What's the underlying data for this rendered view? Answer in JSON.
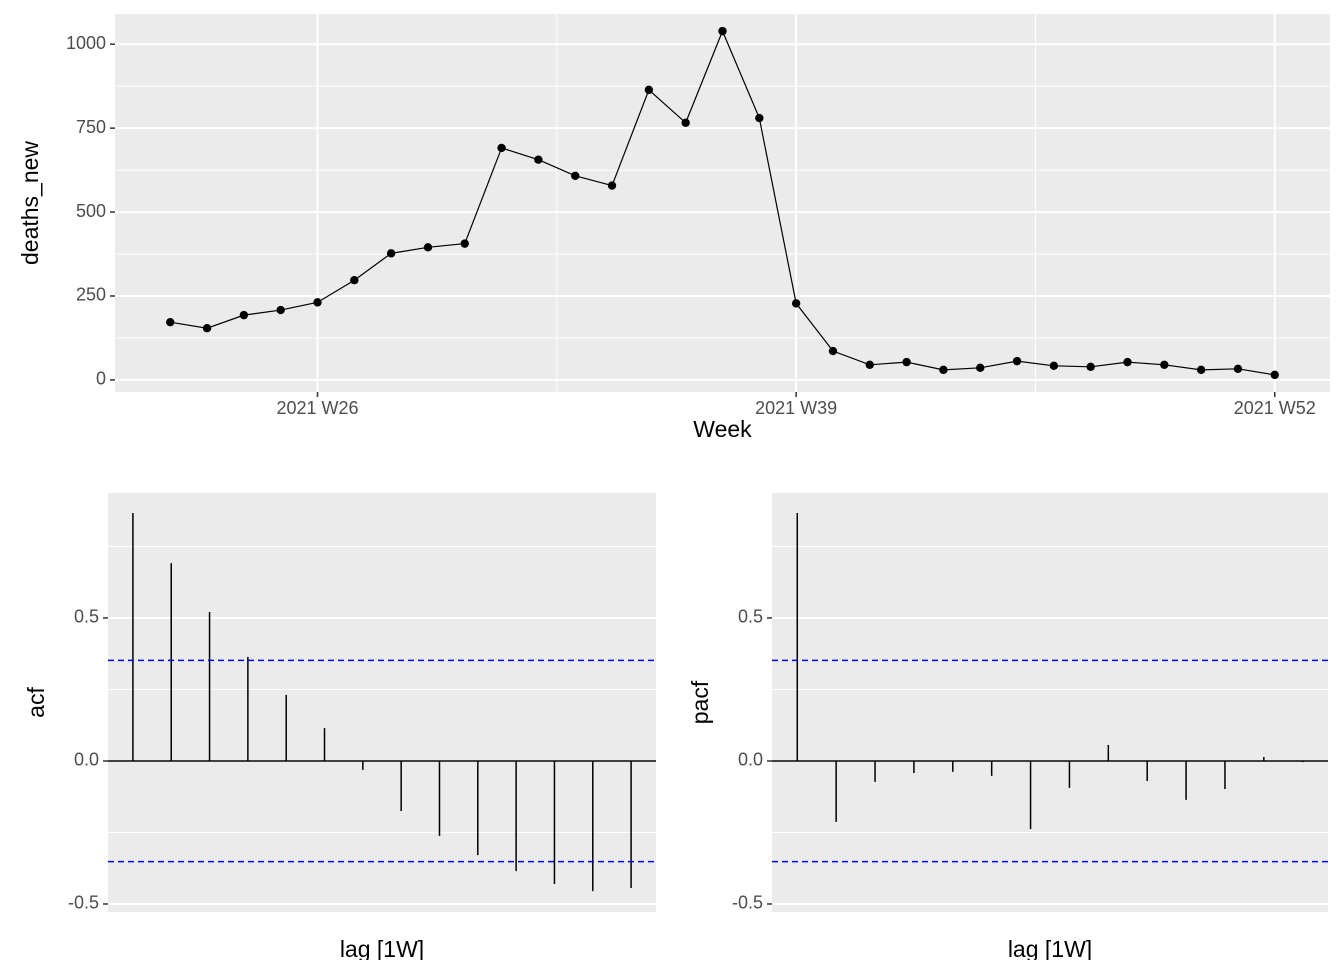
{
  "chart_data": [
    {
      "type": "line",
      "x_label": "Week",
      "y_label": "deaths_new",
      "x": [
        "2021 W22",
        "2021 W23",
        "2021 W24",
        "2021 W25",
        "2021 W26",
        "2021 W27",
        "2021 W28",
        "2021 W29",
        "2021 W30",
        "2021 W31",
        "2021 W32",
        "2021 W33",
        "2021 W34",
        "2021 W35",
        "2021 W36",
        "2021 W37",
        "2021 W38",
        "2021 W39",
        "2021 W40",
        "2021 W41",
        "2021 W42",
        "2021 W43",
        "2021 W44",
        "2021 W45",
        "2021 W46",
        "2021 W47",
        "2021 W48",
        "2021 W49",
        "2021 W50",
        "2021 W51",
        "2021 W52"
      ],
      "values": [
        172,
        154,
        193,
        208,
        231,
        297,
        377,
        395,
        406,
        691,
        656,
        608,
        579,
        864,
        766,
        1039,
        780,
        228,
        86,
        45,
        53,
        30,
        36,
        56,
        42,
        39,
        53,
        45,
        30,
        33,
        15
      ],
      "xticks": [
        "2021 W26",
        "2021 W39",
        "2021 W52"
      ],
      "ylim": [
        -36,
        1090
      ],
      "yticks": [
        0,
        250,
        500,
        750,
        1000
      ],
      "color": "#000000",
      "grid": true
    },
    {
      "type": "bar",
      "x_label": "lag [1W]",
      "y_label": "acf",
      "x": [
        1,
        2,
        3,
        4,
        5,
        6,
        7,
        8,
        9,
        10,
        11,
        12,
        13,
        14
      ],
      "values": [
        0.867,
        0.692,
        0.521,
        0.364,
        0.231,
        0.115,
        -0.031,
        -0.175,
        -0.262,
        -0.329,
        -0.385,
        -0.43,
        -0.455,
        -0.444
      ],
      "xlim": [
        0.35,
        14.65
      ],
      "ylim": [
        -0.528,
        0.937
      ],
      "yticks": [
        -0.5,
        {
          "value": 0,
          "label": "0.0"
        },
        0.5
      ],
      "ci": 0.352,
      "ci_color": "#0000ff",
      "color": "#000000",
      "grid": true
    },
    {
      "type": "bar",
      "x_label": "lag [1W]",
      "y_label": "pacf",
      "x": [
        1,
        2,
        3,
        4,
        5,
        6,
        7,
        8,
        9,
        10,
        11,
        12,
        13,
        14
      ],
      "values": [
        0.867,
        -0.213,
        -0.073,
        -0.042,
        -0.038,
        -0.052,
        -0.238,
        -0.094,
        0.056,
        -0.07,
        -0.136,
        -0.098,
        0.014,
        -0.004
      ],
      "xlim": [
        0.35,
        14.65
      ],
      "ylim": [
        -0.528,
        0.937
      ],
      "yticks": [
        -0.5,
        {
          "value": 0,
          "label": "0.0"
        },
        0.5
      ],
      "ci": 0.352,
      "ci_color": "#0000ff",
      "color": "#000000",
      "grid": true
    }
  ]
}
